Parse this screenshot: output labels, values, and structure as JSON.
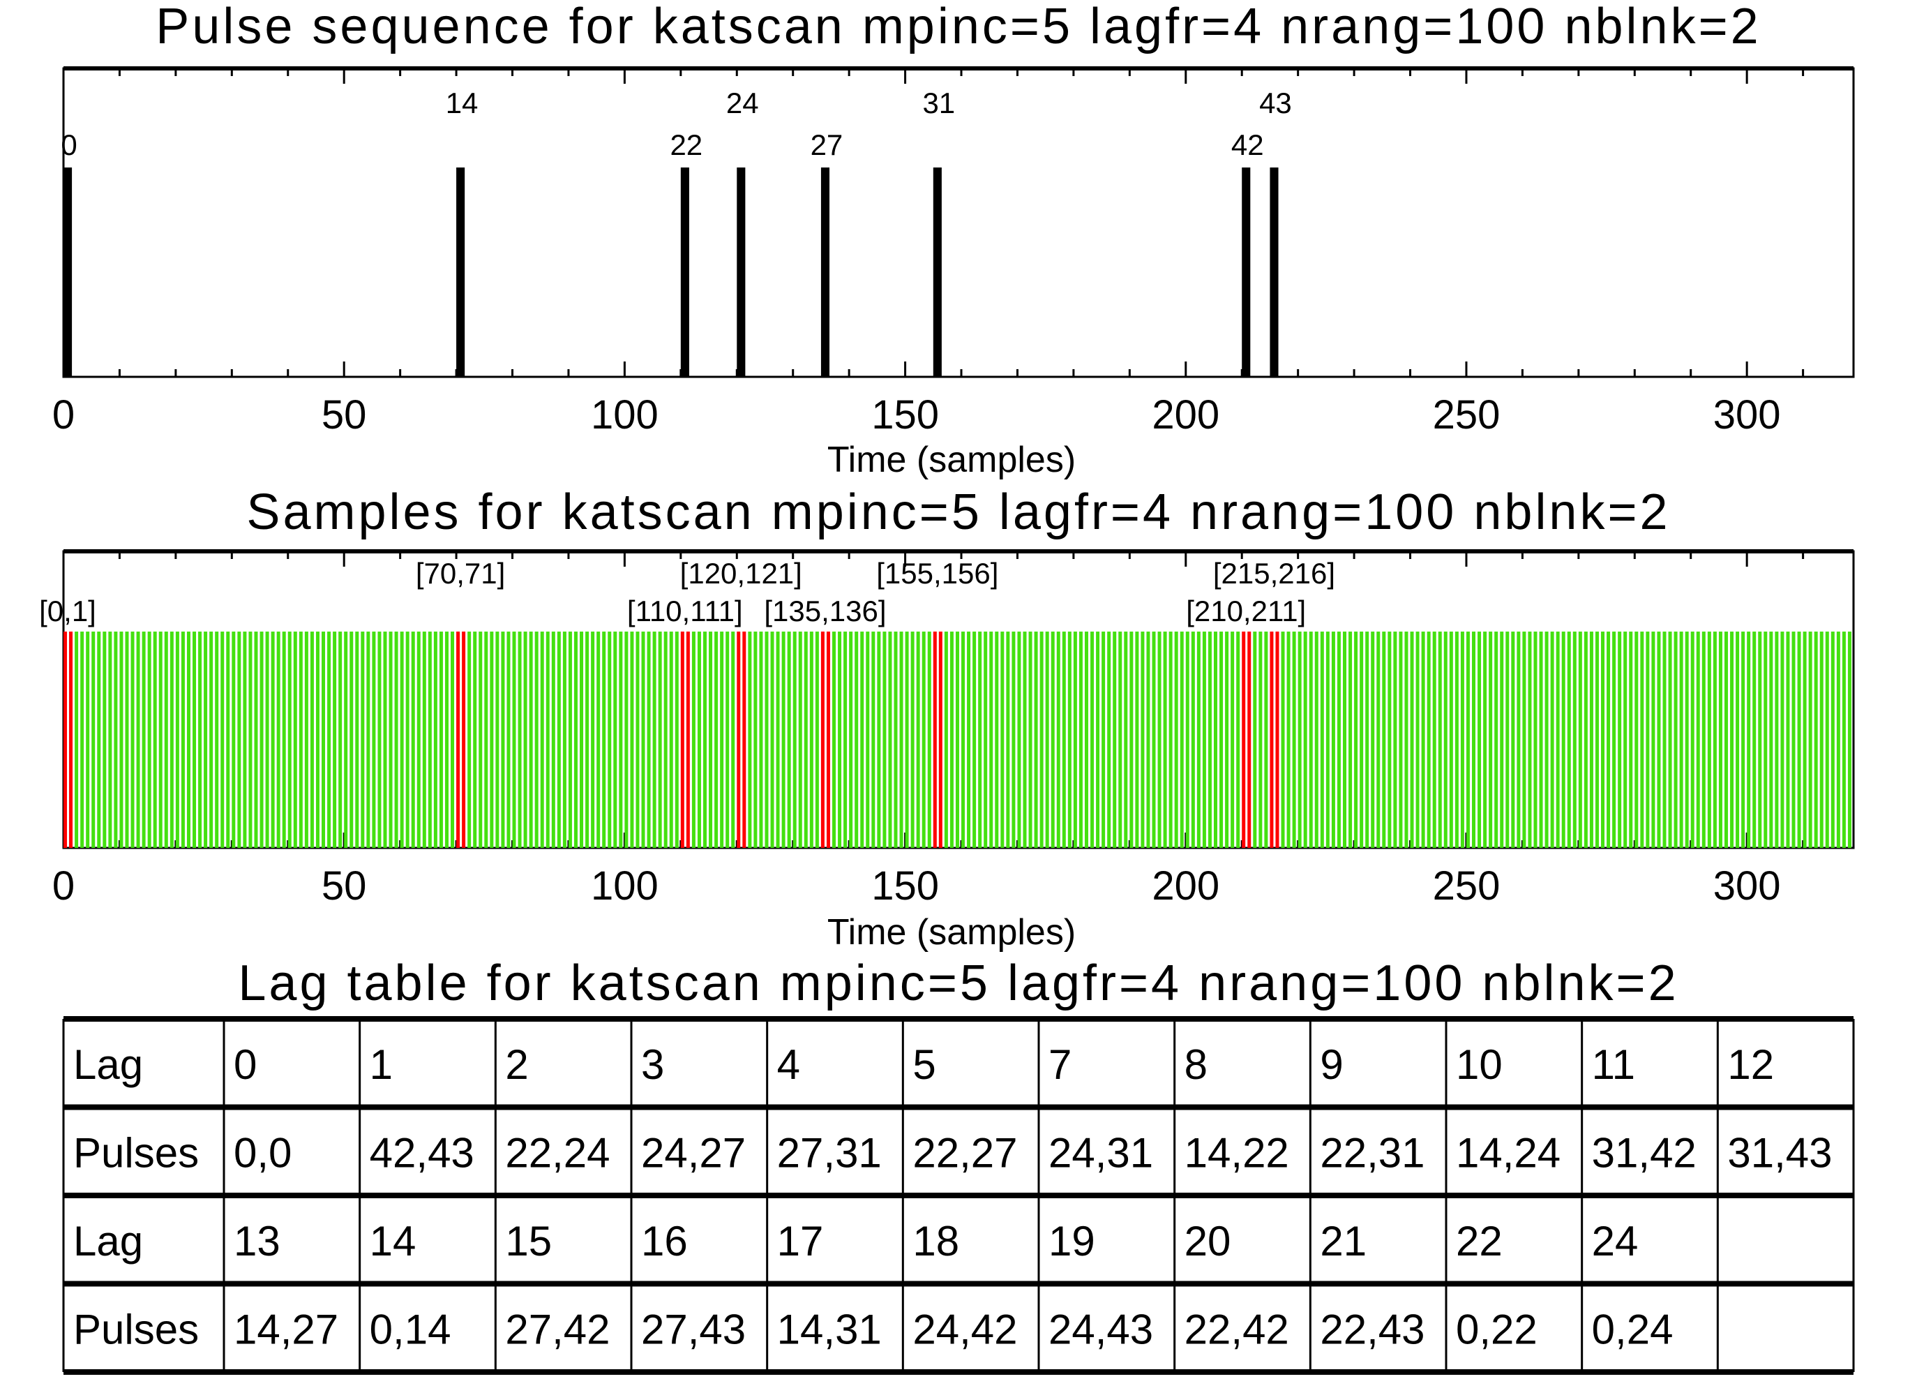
{
  "chart_data": [
    {
      "type": "bar",
      "title": "Pulse sequence for katscan mpinc=5 lagfr=4 nrang=100 nblnk=2",
      "xlabel": "Time (samples)",
      "xlim": [
        0,
        319
      ],
      "xticks": [
        0,
        50,
        100,
        150,
        200,
        250,
        300
      ],
      "minor_tick_step": 10,
      "pulses": [
        0,
        14,
        22,
        24,
        27,
        31,
        42,
        43
      ],
      "mpinc": 5,
      "bar_color": "#000000"
    },
    {
      "type": "bar",
      "title": "Samples for katscan mpinc=5 lagfr=4 nrang=100 nblnk=2",
      "xlabel": "Time (samples)",
      "xlim": [
        0,
        319
      ],
      "xticks": [
        0,
        50,
        100,
        150,
        200,
        250,
        300
      ],
      "minor_tick_step": 10,
      "sample_count": 319,
      "blanked_ranges": [
        [
          0,
          1
        ],
        [
          70,
          71
        ],
        [
          110,
          111
        ],
        [
          120,
          121
        ],
        [
          135,
          136
        ],
        [
          155,
          156
        ],
        [
          210,
          211
        ],
        [
          215,
          216
        ]
      ],
      "blanked_labels": [
        "[0,1]",
        "[70,71]",
        "[110,111]",
        "[120,121]",
        "[135,136]",
        "[155,156]",
        "[210,211]",
        "[215,216]"
      ],
      "sample_color": "#44e010",
      "blanked_color": "#ff0000"
    },
    {
      "type": "table",
      "title": "Lag table for katscan mpinc=5 lagfr=4 nrang=100 nblnk=2",
      "rows": [
        [
          "Lag",
          "0",
          "1",
          "2",
          "3",
          "4",
          "5",
          "7",
          "8",
          "9",
          "10",
          "11",
          "12"
        ],
        [
          "Pulses",
          "0,0",
          "42,43",
          "22,24",
          "24,27",
          "27,31",
          "22,27",
          "24,31",
          "14,22",
          "22,31",
          "14,24",
          "31,42",
          "31,43"
        ],
        [
          "Lag",
          "13",
          "14",
          "15",
          "16",
          "17",
          "18",
          "19",
          "20",
          "21",
          "22",
          "24",
          ""
        ],
        [
          "Pulses",
          "14,27",
          "0,14",
          "27,42",
          "27,43",
          "14,31",
          "24,42",
          "24,43",
          "22,42",
          "22,43",
          "0,22",
          "0,24",
          ""
        ]
      ]
    }
  ]
}
